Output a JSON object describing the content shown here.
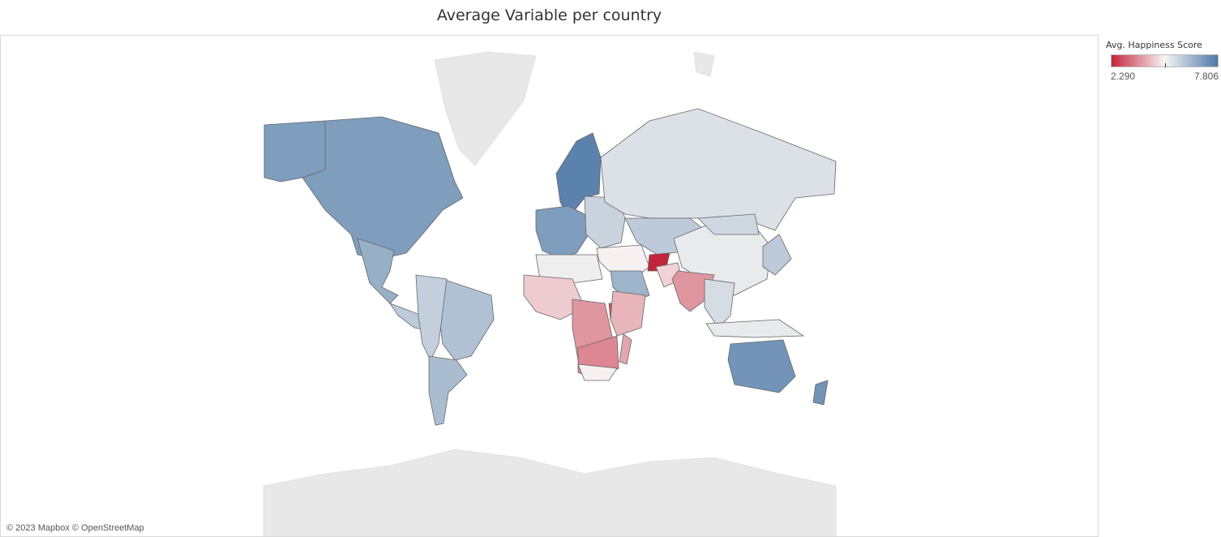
{
  "title": "Average Variable per country",
  "attribution": "© 2023 Mapbox © OpenStreetMap",
  "legend": {
    "title": "Avg. Happiness Score",
    "min_label": "2.290",
    "max_label": "7.806",
    "color_low": "#c3243a",
    "color_mid": "#f7f5f3",
    "color_high": "#4e79a7"
  },
  "colors": {
    "no_data": "#e8e8e8",
    "border": "#666666",
    "background": "#ffffff"
  },
  "regions": [
    {
      "name": "North America",
      "score": 7.0
    },
    {
      "name": "Greenland",
      "score": null
    },
    {
      "name": "Alaska",
      "score": 7.0
    },
    {
      "name": "Mexico",
      "score": 6.6
    },
    {
      "name": "Central America",
      "score": 6.0
    },
    {
      "name": "Brazil",
      "score": 6.2
    },
    {
      "name": "Andean South America",
      "score": 5.9
    },
    {
      "name": "Southern Cone",
      "score": 6.3
    },
    {
      "name": "Nordic",
      "score": 7.6
    },
    {
      "name": "Western Europe",
      "score": 7.0
    },
    {
      "name": "Eastern Europe",
      "score": 5.8
    },
    {
      "name": "Russia",
      "score": 5.5
    },
    {
      "name": "Central Asia",
      "score": 6.0
    },
    {
      "name": "China",
      "score": 5.3
    },
    {
      "name": "Mongolia",
      "score": 5.7
    },
    {
      "name": "Japan and Korea",
      "score": 6.0
    },
    {
      "name": "Middle East",
      "score": 5.0
    },
    {
      "name": "Saudi Arabia",
      "score": 6.5
    },
    {
      "name": "Afghanistan",
      "score": 2.29
    },
    {
      "name": "Pakistan",
      "score": 4.6
    },
    {
      "name": "India",
      "score": 3.8
    },
    {
      "name": "Southeast Asia",
      "score": 5.6
    },
    {
      "name": "Indonesia",
      "score": 5.3
    },
    {
      "name": "North Africa",
      "score": 5.2
    },
    {
      "name": "West Africa",
      "score": 4.5
    },
    {
      "name": "Central Africa",
      "score": 3.8
    },
    {
      "name": "South Sudan",
      "score": 2.9
    },
    {
      "name": "East Africa",
      "score": 4.2
    },
    {
      "name": "Southern Africa",
      "score": 3.6
    },
    {
      "name": "South Africa",
      "score": 5.0
    },
    {
      "name": "Madagascar",
      "score": 4.0
    },
    {
      "name": "Australia",
      "score": 7.2
    },
    {
      "name": "New Zealand",
      "score": 7.2
    },
    {
      "name": "Antarctica",
      "score": null
    },
    {
      "name": "Svalbard",
      "score": null
    }
  ]
}
